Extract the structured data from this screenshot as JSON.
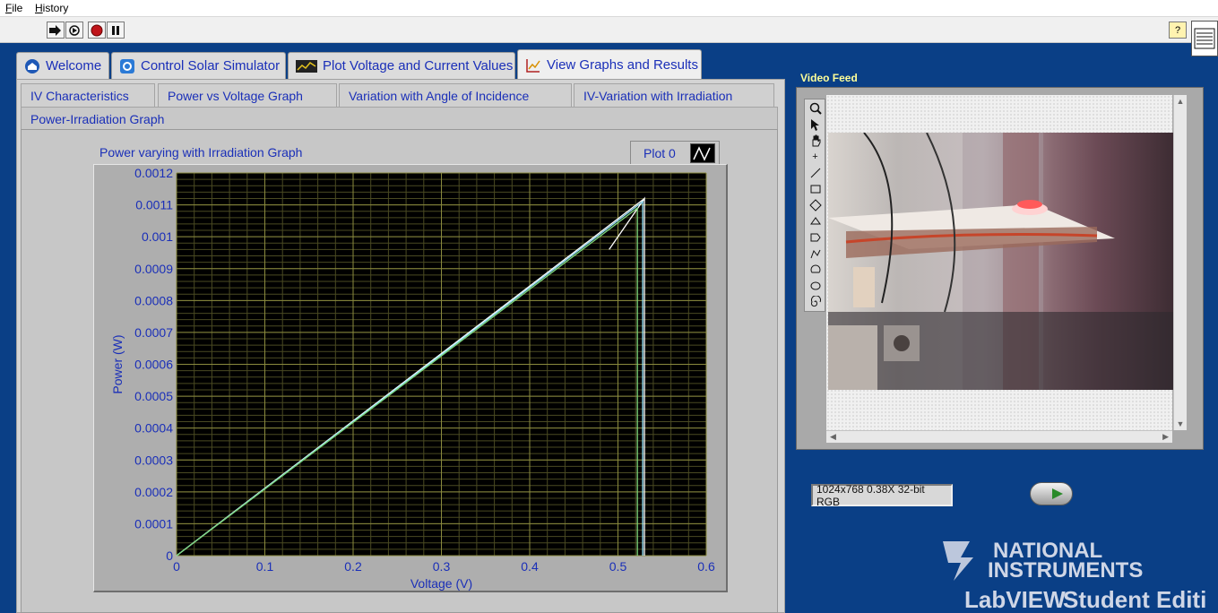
{
  "menu": {
    "file": "File",
    "history": "History"
  },
  "toolbar": {
    "run_icon": "run-arrow-icon",
    "run_continuous_icon": "run-continuously-icon",
    "abort_icon": "abort-icon",
    "pause_icon": "pause-icon",
    "help_label": "?"
  },
  "main_tabs": [
    {
      "label": "Welcome",
      "icon": "home-icon"
    },
    {
      "label": "Control Solar Simulator",
      "icon": "gear-icon"
    },
    {
      "label": "Plot Voltage and Current Values",
      "icon": "plot-icon"
    },
    {
      "label": "View Graphs and Results",
      "icon": "chart-icon"
    }
  ],
  "sub_tabs": [
    "IV Characteristics",
    "Power vs Voltage Graph",
    "Variation with Angle of Incidence",
    "IV-Variation with Irradiation",
    "Power-Irradiation Graph"
  ],
  "graph": {
    "title": "Power varying with Irradiation Graph",
    "legend_label": "Plot 0",
    "xlabel": "Voltage (V)",
    "ylabel": "Power (W)"
  },
  "chart_data": {
    "type": "line",
    "title": "Power varying with Irradiation Graph",
    "xlabel": "Voltage (V)",
    "ylabel": "Power (W)",
    "xlim": [
      0,
      0.6
    ],
    "ylim": [
      0,
      0.0012
    ],
    "x_ticks": [
      "0",
      "0.1",
      "0.2",
      "0.3",
      "0.4",
      "0.5",
      "0.6"
    ],
    "y_ticks": [
      "0",
      "0.0001",
      "0.0002",
      "0.0003",
      "0.0004",
      "0.0005",
      "0.0006",
      "0.0007",
      "0.0008",
      "0.0009",
      "0.001",
      "0.0011",
      "0.0012"
    ],
    "grid": true,
    "legend": "top-right",
    "series": [
      {
        "name": "Plot 0",
        "color": "#ffffff",
        "x": [
          0,
          0.53,
          0.49,
          0.53,
          0.53
        ],
        "y": [
          0,
          0.00112,
          0.00096,
          0.00112,
          0
        ]
      },
      {
        "color": "#9be7ff",
        "x": [
          0,
          0.528,
          0.528
        ],
        "y": [
          0,
          0.00111,
          0
        ]
      },
      {
        "color": "#7cd67c",
        "x": [
          0,
          0.522,
          0.522
        ],
        "y": [
          0,
          0.00109,
          0
        ]
      }
    ]
  },
  "video": {
    "title": "Video Feed",
    "image_info": "1024x768 0.38X 32-bit RGB",
    "tools": [
      "zoom-icon",
      "pointer-icon",
      "pan-hand-icon",
      "point-icon",
      "line-icon",
      "rectangle-icon",
      "rotated-rectangle-icon",
      "polygon-icon",
      "freehand-icon",
      "broken-line-icon",
      "annulus-icon",
      "oval-icon",
      "spiral-icon"
    ]
  },
  "brand": {
    "line1": "NATIONAL",
    "line2": "INSTRUMENTS",
    "line3": "LabVIEW",
    "line4": "Student Edition"
  },
  "colors": {
    "background": "#0a3f86",
    "tab_text": "#1a2fb8",
    "plot_bg": "#000000",
    "grid": "#7a7a3a"
  }
}
